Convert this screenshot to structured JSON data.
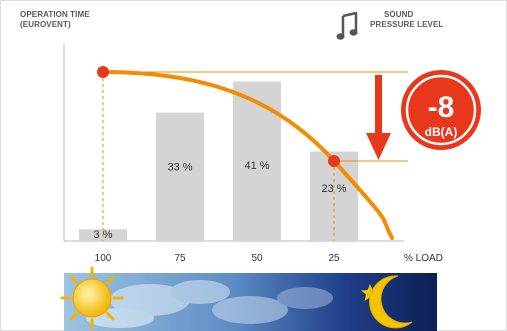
{
  "header": {
    "left_label_line1": "OPERATION TIME",
    "left_label_line2": "(EUROVENT)",
    "right_label_line1": "SOUND",
    "right_label_line2": "PRESSURE LEVEL"
  },
  "badge": {
    "value": "-8",
    "unit": "dB(A)"
  },
  "colors": {
    "bar": "#d4d4d4",
    "curve": "#f28c00",
    "accent": "#e8381c",
    "badge": "#e8381c"
  },
  "chart_data": {
    "type": "bar",
    "categories": [
      "100",
      "75",
      "50",
      "25"
    ],
    "values": [
      3,
      33,
      41,
      23
    ],
    "bar_labels": [
      "3 %",
      "33 %",
      "41 %",
      "23 %"
    ],
    "xlabel": "% LOAD",
    "y_axis_title": "OPERATION TIME (EUROVENT)",
    "secondary_axis_title": "SOUND PRESSURE LEVEL",
    "ylim": [
      0,
      46
    ],
    "sound_curve": {
      "x_load": [
        100,
        75,
        50,
        25,
        12
      ],
      "points_marked": [
        100,
        25
      ],
      "reduction_db": -8
    }
  },
  "icons": {
    "music": "music-note-icon",
    "sun": "sun-icon",
    "moon": "moon-icon",
    "star": "star-icon",
    "arrow": "down-arrow-icon"
  }
}
